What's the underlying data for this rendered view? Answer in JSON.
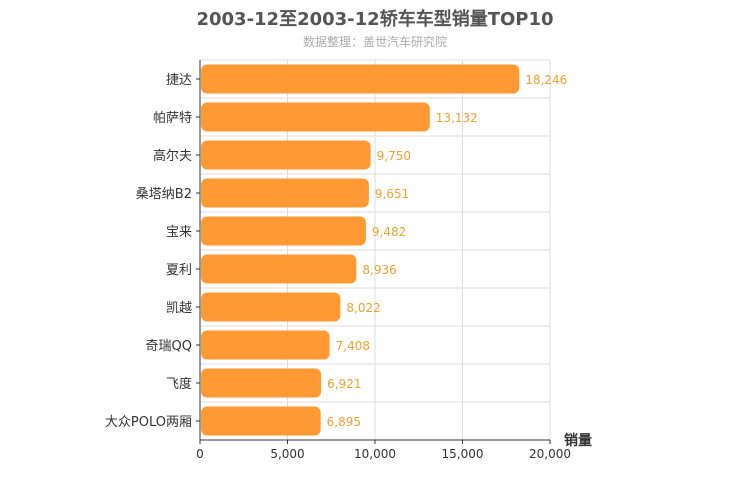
{
  "chart_data": {
    "type": "bar",
    "orientation": "horizontal",
    "title": "2003-12至2003-12轿车车型销量TOP10",
    "subtitle": "数据整理：盖世汽车研究院",
    "xlabel": "销量",
    "ylabel": "",
    "xlim": [
      0,
      20000
    ],
    "x_ticks": [
      "0",
      "5,000",
      "10,000",
      "15,000",
      "20,000"
    ],
    "grid": true,
    "categories": [
      "捷达",
      "帕萨特",
      "高尔夫",
      "桑塔纳B2",
      "宝来",
      "夏利",
      "凯越",
      "奇瑞QQ",
      "飞度",
      "大众POLO两厢"
    ],
    "values": [
      18246,
      13132,
      9750,
      9651,
      9482,
      8936,
      8022,
      7408,
      6921,
      6895
    ],
    "value_labels": [
      "18,246",
      "13,132",
      "9,750",
      "9,651",
      "9,482",
      "8,936",
      "8,022",
      "7,408",
      "6,921",
      "6,895"
    ],
    "colors": {
      "bar": "#ff9933",
      "value_label": "#f0a030",
      "grid": "#dddddd",
      "axis": "#333333"
    }
  }
}
